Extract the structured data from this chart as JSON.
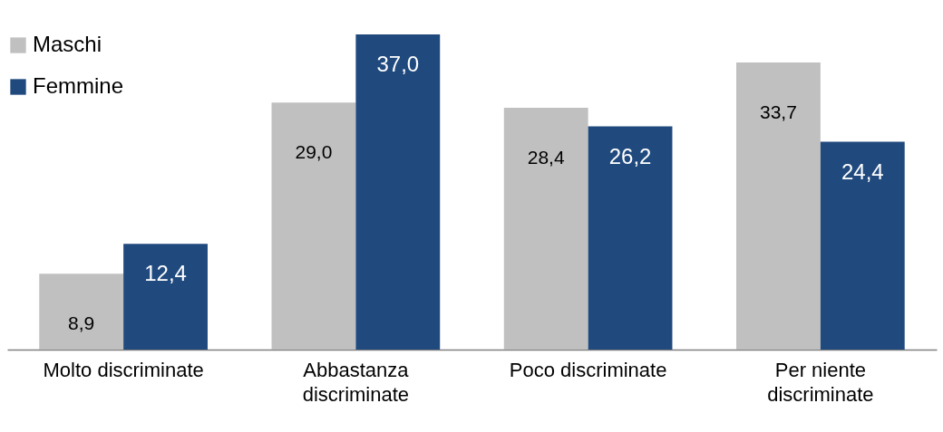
{
  "chart_data": {
    "type": "bar",
    "categories": [
      "Molto discriminate",
      "Abbastanza discriminate",
      "Poco discriminate",
      "Per niente discriminate"
    ],
    "series": [
      {
        "name": "Maschi",
        "color": "#c0c0c0",
        "values": [
          8.9,
          29.0,
          28.4,
          33.7
        ],
        "value_labels": [
          "8,9",
          "29,0",
          "28,4",
          "33,7"
        ]
      },
      {
        "name": "Femmine",
        "color": "#204a7e",
        "values": [
          12.4,
          37.0,
          26.2,
          24.4
        ],
        "value_labels": [
          "12,4",
          "37,0",
          "26,2",
          "24,4"
        ]
      }
    ],
    "legend": "top left"
  }
}
